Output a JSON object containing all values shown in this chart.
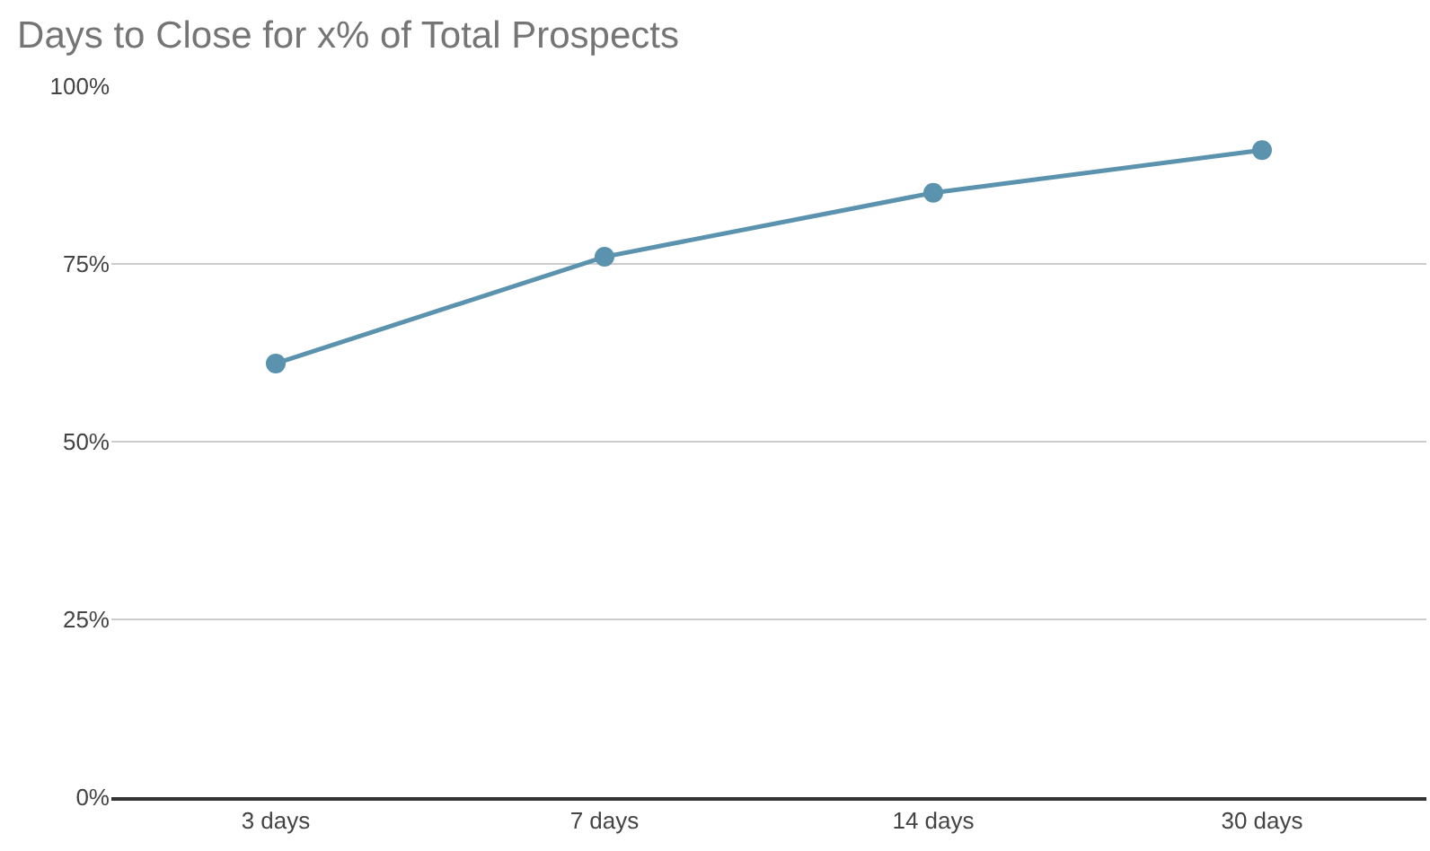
{
  "chart_data": {
    "type": "line",
    "title": "Days to Close for x% of Total Prospects",
    "categories": [
      "3 days",
      "7 days",
      "14 days",
      "30 days"
    ],
    "series": [
      {
        "color": "#5b93ae",
        "values": [
          61,
          76,
          85,
          91
        ]
      }
    ],
    "ylim": [
      0,
      100
    ],
    "yticks": [
      {
        "value": 0,
        "label": "0%"
      },
      {
        "value": 25,
        "label": "25%"
      },
      {
        "value": 50,
        "label": "50%"
      },
      {
        "value": 75,
        "label": "75%"
      },
      {
        "value": 100,
        "label": "100%"
      }
    ],
    "grid": "y",
    "marker": "circle",
    "line_style": "solid"
  }
}
